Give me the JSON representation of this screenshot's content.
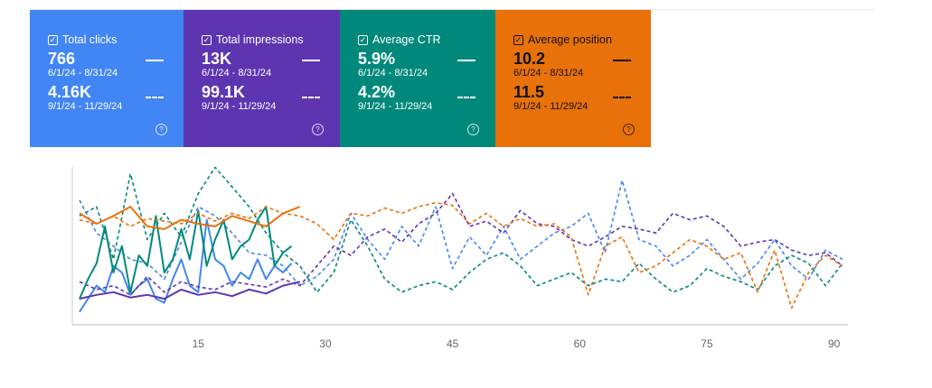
{
  "cards": [
    {
      "label": "Total clicks",
      "value1": "766",
      "range1": "6/1/24 - 8/31/24",
      "value2": "4.16K",
      "range2": "9/1/24 - 11/29/24",
      "color": "#4285f4",
      "checked": true
    },
    {
      "label": "Total impressions",
      "value1": "13K",
      "range1": "6/1/24 - 8/31/24",
      "value2": "99.1K",
      "range2": "9/1/24 - 11/29/24",
      "color": "#5e35b1",
      "checked": true
    },
    {
      "label": "Average CTR",
      "value1": "5.9%",
      "range1": "6/1/24 - 8/31/24",
      "value2": "4.2%",
      "range2": "9/1/24 - 11/29/24",
      "color": "#00897b",
      "checked": true
    },
    {
      "label": "Average position",
      "value1": "10.2",
      "range1": "6/1/24 - 8/31/24",
      "value2": "11.5",
      "range2": "9/1/24 - 11/29/24",
      "color": "#e8710a",
      "checked": true
    }
  ],
  "chart_data": {
    "type": "line",
    "x_ticks": [
      15,
      30,
      45,
      60,
      75,
      90
    ],
    "xlim": [
      1,
      91
    ],
    "ylim": [
      0,
      100
    ],
    "series": [
      {
        "name": "Total clicks (6/1/24 - 8/31/24)",
        "color": "#4285f4",
        "style": "solid",
        "x": [
          1,
          2,
          3,
          4,
          5,
          6,
          7,
          8,
          9,
          10,
          11,
          12,
          13,
          14,
          15,
          16,
          17,
          18,
          19,
          20,
          21,
          22,
          23,
          24,
          25,
          26
        ],
        "y": [
          5,
          15,
          25,
          20,
          40,
          35,
          18,
          25,
          30,
          15,
          12,
          30,
          45,
          25,
          20,
          75,
          45,
          40,
          25,
          35,
          30,
          45,
          30,
          40,
          35,
          42
        ]
      },
      {
        "name": "Total clicks (9/1/24 - 11/29/24)",
        "color": "#4285f4",
        "style": "dashed",
        "x": [
          1,
          3,
          5,
          7,
          9,
          11,
          13,
          15,
          17,
          19,
          21,
          23,
          25,
          27,
          29,
          31,
          33,
          35,
          37,
          39,
          41,
          43,
          45,
          47,
          49,
          51,
          53,
          55,
          57,
          59,
          61,
          63,
          65,
          67,
          69,
          71,
          73,
          75,
          77,
          79,
          81,
          83,
          85,
          87,
          89,
          91
        ],
        "y": [
          90,
          65,
          55,
          45,
          42,
          30,
          58,
          85,
          78,
          65,
          50,
          48,
          40,
          25,
          32,
          45,
          80,
          60,
          45,
          70,
          55,
          85,
          38,
          62,
          48,
          70,
          45,
          55,
          65,
          70,
          80,
          50,
          105,
          60,
          55,
          40,
          48,
          60,
          45,
          30,
          42,
          60,
          40,
          30,
          52,
          45
        ]
      },
      {
        "name": "Total impressions (6/1/24 - 8/31/24)",
        "color": "#5e35b1",
        "style": "solid",
        "x": [
          1,
          3,
          5,
          7,
          9,
          11,
          13,
          15,
          17,
          19,
          21,
          23,
          25,
          27
        ],
        "y": [
          15,
          18,
          20,
          16,
          18,
          15,
          22,
          18,
          20,
          17,
          22,
          19,
          25,
          28
        ]
      },
      {
        "name": "Total impressions (9/1/24 - 11/29/24)",
        "color": "#5e35b1",
        "style": "dashed",
        "x": [
          1,
          3,
          5,
          7,
          9,
          11,
          13,
          15,
          17,
          19,
          21,
          23,
          25,
          27,
          29,
          31,
          33,
          35,
          37,
          39,
          41,
          43,
          45,
          47,
          49,
          51,
          53,
          55,
          57,
          59,
          61,
          63,
          65,
          67,
          69,
          71,
          73,
          75,
          77,
          79,
          81,
          83,
          85,
          87,
          89,
          91
        ],
        "y": [
          28,
          22,
          25,
          18,
          32,
          20,
          28,
          24,
          22,
          28,
          26,
          24,
          30,
          25,
          40,
          55,
          48,
          62,
          68,
          58,
          72,
          80,
          95,
          70,
          74,
          65,
          82,
          72,
          70,
          60,
          55,
          62,
          70,
          68,
          65,
          80,
          75,
          78,
          70,
          55,
          58,
          60,
          52,
          48,
          50,
          40
        ]
      },
      {
        "name": "Average CTR (6/1/24 - 8/31/24)",
        "color": "#00897b",
        "style": "solid",
        "x": [
          1,
          2,
          3,
          4,
          5,
          6,
          7,
          8,
          9,
          10,
          11,
          12,
          13,
          14,
          15,
          16,
          17,
          18,
          19,
          20,
          21,
          22,
          23,
          24,
          25,
          26
        ],
        "y": [
          15,
          30,
          42,
          70,
          35,
          55,
          20,
          48,
          40,
          78,
          35,
          45,
          68,
          45,
          82,
          40,
          60,
          75,
          45,
          55,
          60,
          75,
          85,
          40,
          50,
          55
        ]
      },
      {
        "name": "Average CTR (9/1/24 - 11/29/24)",
        "color": "#00897b",
        "style": "dashed",
        "x": [
          1,
          3,
          5,
          7,
          9,
          11,
          13,
          15,
          17,
          19,
          21,
          23,
          25,
          27,
          29,
          31,
          33,
          35,
          37,
          39,
          41,
          43,
          45,
          47,
          49,
          51,
          53,
          55,
          57,
          59,
          61,
          63,
          65,
          67,
          69,
          71,
          73,
          75,
          77,
          79,
          81,
          83,
          85,
          87,
          89,
          91
        ],
        "y": [
          78,
          85,
          45,
          110,
          60,
          80,
          62,
          95,
          115,
          100,
          85,
          65,
          50,
          40,
          20,
          35,
          75,
          55,
          30,
          20,
          25,
          28,
          22,
          35,
          45,
          50,
          40,
          25,
          30,
          35,
          25,
          30,
          28,
          42,
          30,
          20,
          25,
          38,
          32,
          28,
          22,
          40,
          48,
          42,
          25,
          42
        ]
      },
      {
        "name": "Average position (6/1/24 - 8/31/24)",
        "color": "#e8710a",
        "style": "solid",
        "x": [
          1,
          3,
          5,
          7,
          9,
          11,
          13,
          15,
          17,
          19,
          21,
          23,
          25,
          27
        ],
        "y": [
          80,
          72,
          78,
          85,
          70,
          68,
          75,
          72,
          70,
          78,
          74,
          70,
          80,
          85
        ]
      },
      {
        "name": "Average position (9/1/24 - 11/29/24)",
        "color": "#e8710a",
        "style": "dashed",
        "x": [
          1,
          3,
          5,
          7,
          9,
          11,
          13,
          15,
          17,
          19,
          21,
          23,
          25,
          27,
          29,
          31,
          33,
          35,
          37,
          39,
          41,
          43,
          45,
          47,
          49,
          51,
          53,
          55,
          57,
          59,
          61,
          63,
          65,
          67,
          69,
          71,
          73,
          75,
          77,
          79,
          81,
          83,
          85,
          87,
          89,
          91
        ],
        "y": [
          75,
          72,
          78,
          70,
          76,
          74,
          72,
          80,
          74,
          80,
          76,
          85,
          80,
          78,
          72,
          60,
          80,
          78,
          84,
          80,
          85,
          88,
          86,
          72,
          80,
          70,
          76,
          70,
          72,
          62,
          18,
          55,
          62,
          35,
          40,
          50,
          60,
          55,
          45,
          50,
          20,
          52,
          8,
          35,
          48,
          40
        ]
      }
    ]
  }
}
